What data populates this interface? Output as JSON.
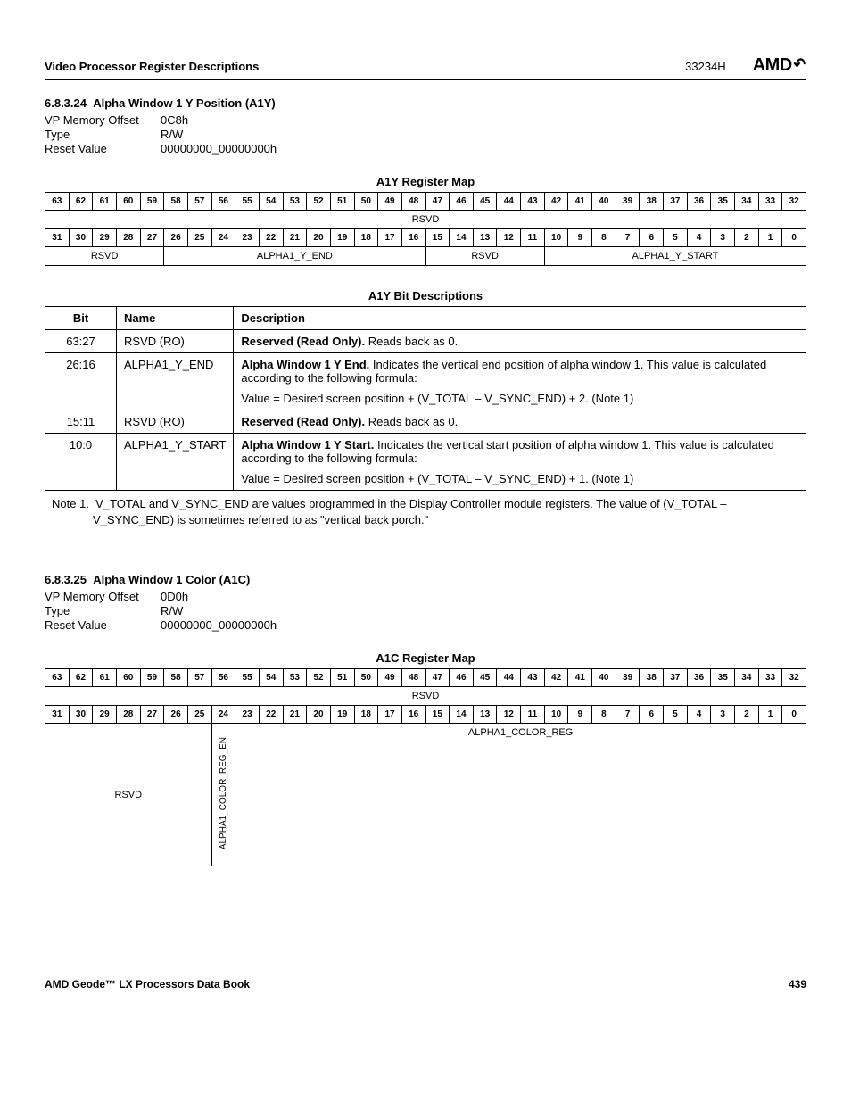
{
  "header": {
    "left": "Video Processor Register Descriptions",
    "docid": "33234H",
    "logo": "AMD"
  },
  "footer": {
    "left": "AMD Geode™ LX Processors Data Book",
    "page": "439"
  },
  "sec1": {
    "num": "6.8.3.24",
    "title": "Alpha Window 1 Y Position (A1Y)",
    "offset_label": "VP Memory Offset",
    "offset": "0C8h",
    "type_label": "Type",
    "type": "R/W",
    "reset_label": "Reset Value",
    "reset": "00000000_00000000h",
    "map_title": "A1Y Register Map",
    "bits_hi": [
      "63",
      "62",
      "61",
      "60",
      "59",
      "58",
      "57",
      "56",
      "55",
      "54",
      "53",
      "52",
      "51",
      "50",
      "49",
      "48",
      "47",
      "46",
      "45",
      "44",
      "43",
      "42",
      "41",
      "40",
      "39",
      "38",
      "37",
      "36",
      "35",
      "34",
      "33",
      "32"
    ],
    "bits_lo": [
      "31",
      "30",
      "29",
      "28",
      "27",
      "26",
      "25",
      "24",
      "23",
      "22",
      "21",
      "20",
      "19",
      "18",
      "17",
      "16",
      "15",
      "14",
      "13",
      "12",
      "11",
      "10",
      "9",
      "8",
      "7",
      "6",
      "5",
      "4",
      "3",
      "2",
      "1",
      "0"
    ],
    "field_hi_rsvd": "RSVD",
    "field_lo": {
      "rsvd1": "RSVD",
      "end": "ALPHA1_Y_END",
      "rsvd2": "RSVD",
      "start": "ALPHA1_Y_START"
    },
    "desc_title": "A1Y Bit Descriptions",
    "cols": {
      "bit": "Bit",
      "name": "Name",
      "desc": "Description"
    },
    "rows": [
      {
        "bit": "63:27",
        "name": "RSVD (RO)",
        "d1b": "Reserved (Read Only).",
        "d1": " Reads back as 0."
      },
      {
        "bit": "26:16",
        "name": "ALPHA1_Y_END",
        "d1b": "Alpha Window 1 Y End.",
        "d1": " Indicates the vertical end position of alpha window 1. This value is calculated according to the following formula:",
        "d2": "Value = Desired screen position + (V_TOTAL – V_SYNC_END) + 2. (Note 1)"
      },
      {
        "bit": "15:11",
        "name": "RSVD (RO)",
        "d1b": "Reserved (Read Only).",
        "d1": " Reads back as 0."
      },
      {
        "bit": "10:0",
        "name": "ALPHA1_Y_START",
        "d1b": "Alpha Window 1 Y Start.",
        "d1": " Indicates the vertical start position of alpha window 1. This value is calculated according to the following formula:",
        "d2": "Value = Desired screen position + (V_TOTAL – V_SYNC_END) + 1. (Note 1)"
      }
    ],
    "note_label": "Note 1.",
    "note": "V_TOTAL and V_SYNC_END are values programmed in the Display Controller module registers. The value of (V_TOTAL – V_SYNC_END) is sometimes referred to as \"vertical back porch.\""
  },
  "sec2": {
    "num": "6.8.3.25",
    "title": "Alpha Window 1 Color (A1C)",
    "offset_label": "VP Memory Offset",
    "offset": "0D0h",
    "type_label": "Type",
    "type": "R/W",
    "reset_label": "Reset Value",
    "reset": "00000000_00000000h",
    "map_title": "A1C Register Map",
    "field_hi_rsvd": "RSVD",
    "field_lo": {
      "rsvd": "RSVD",
      "en": "ALPHA1_COLOR_REG_EN",
      "reg": "ALPHA1_COLOR_REG"
    }
  }
}
